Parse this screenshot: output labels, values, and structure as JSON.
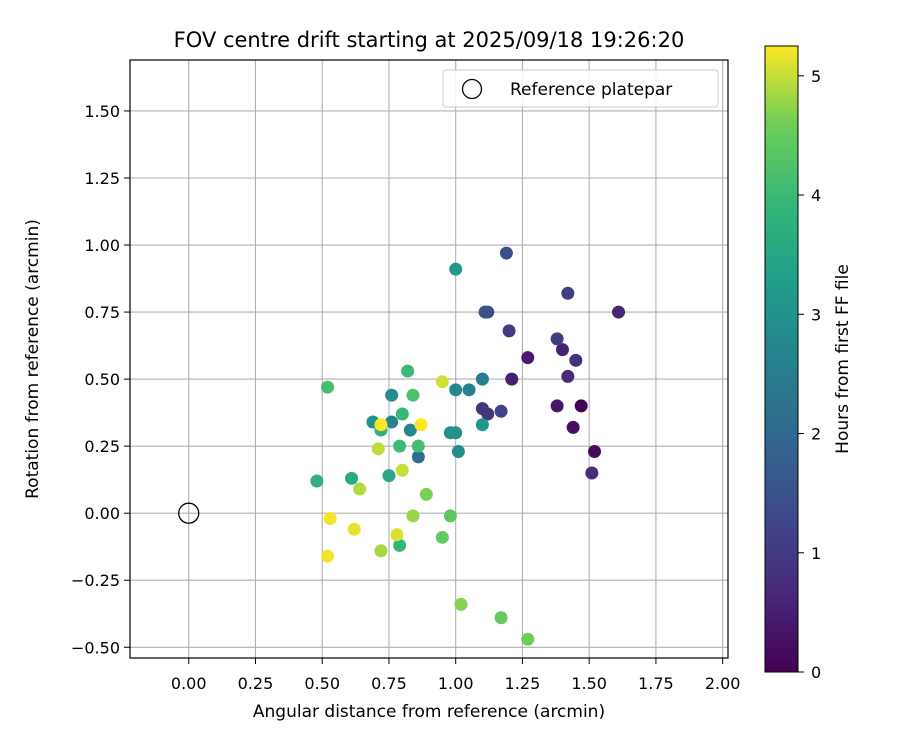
{
  "chart_data": {
    "type": "scatter",
    "title": "FOV centre drift starting at 2025/09/18 19:26:20",
    "xlabel": "Angular distance from reference (arcmin)",
    "ylabel": "Rotation from reference (arcmin)",
    "xlim": [
      -0.22,
      2.02
    ],
    "ylim": [
      -0.54,
      1.69
    ],
    "xticks": [
      0.0,
      0.25,
      0.5,
      0.75,
      1.0,
      1.25,
      1.5,
      1.75,
      2.0
    ],
    "xtick_labels": [
      "0.00",
      "0.25",
      "0.50",
      "0.75",
      "1.00",
      "1.25",
      "1.50",
      "1.75",
      "2.00"
    ],
    "yticks": [
      -0.5,
      -0.25,
      0.0,
      0.25,
      0.5,
      0.75,
      1.0,
      1.25,
      1.5
    ],
    "ytick_labels": [
      "−0.50",
      "−0.25",
      "0.00",
      "0.25",
      "0.50",
      "0.75",
      "1.00",
      "1.25",
      "1.50"
    ],
    "grid": true,
    "legend": {
      "position": "top-right",
      "entries": [
        {
          "label": "Reference platepar",
          "marker": "open-circle"
        }
      ]
    },
    "reference_point": {
      "x": 0.0,
      "y": 0.0,
      "label": "Reference platepar"
    },
    "colorbar": {
      "label": "Hours from first FF file",
      "range": [
        0,
        5.25
      ],
      "ticks": [
        0,
        1,
        2,
        3,
        4,
        5
      ],
      "tick_labels": [
        "0",
        "1",
        "2",
        "3",
        "4",
        "5"
      ],
      "colormap": "viridis"
    },
    "points": [
      {
        "x": 1.47,
        "y": 0.4,
        "c": 0.0
      },
      {
        "x": 1.52,
        "y": 0.23,
        "c": 0.15
      },
      {
        "x": 1.44,
        "y": 0.32,
        "c": 0.25
      },
      {
        "x": 1.38,
        "y": 0.4,
        "c": 0.35
      },
      {
        "x": 1.27,
        "y": 0.58,
        "c": 0.45
      },
      {
        "x": 1.21,
        "y": 0.5,
        "c": 0.5
      },
      {
        "x": 1.4,
        "y": 0.61,
        "c": 0.55
      },
      {
        "x": 1.61,
        "y": 0.75,
        "c": 0.6
      },
      {
        "x": 1.42,
        "y": 0.51,
        "c": 0.7
      },
      {
        "x": 1.51,
        "y": 0.15,
        "c": 0.75
      },
      {
        "x": 1.45,
        "y": 0.57,
        "c": 0.85
      },
      {
        "x": 1.12,
        "y": 0.37,
        "c": 0.9
      },
      {
        "x": 1.1,
        "y": 0.39,
        "c": 0.95
      },
      {
        "x": 1.2,
        "y": 0.68,
        "c": 1.0
      },
      {
        "x": 1.38,
        "y": 0.65,
        "c": 1.05
      },
      {
        "x": 1.42,
        "y": 0.82,
        "c": 1.1
      },
      {
        "x": 1.17,
        "y": 0.38,
        "c": 1.2
      },
      {
        "x": 1.12,
        "y": 0.75,
        "c": 1.3
      },
      {
        "x": 1.19,
        "y": 0.97,
        "c": 1.4
      },
      {
        "x": 1.11,
        "y": 0.75,
        "c": 1.5
      },
      {
        "x": 0.86,
        "y": 0.21,
        "c": 2.1
      },
      {
        "x": 1.1,
        "y": 0.5,
        "c": 2.5
      },
      {
        "x": 1.05,
        "y": 0.46,
        "c": 2.6
      },
      {
        "x": 0.76,
        "y": 0.34,
        "c": 2.7
      },
      {
        "x": 1.0,
        "y": 0.46,
        "c": 2.75
      },
      {
        "x": 0.83,
        "y": 0.31,
        "c": 2.8
      },
      {
        "x": 0.76,
        "y": 0.44,
        "c": 2.85
      },
      {
        "x": 1.01,
        "y": 0.23,
        "c": 2.9
      },
      {
        "x": 0.98,
        "y": 0.3,
        "c": 2.95
      },
      {
        "x": 1.0,
        "y": 0.3,
        "c": 3.0
      },
      {
        "x": 0.69,
        "y": 0.34,
        "c": 3.05
      },
      {
        "x": 1.1,
        "y": 0.33,
        "c": 3.1
      },
      {
        "x": 1.0,
        "y": 0.91,
        "c": 3.15
      },
      {
        "x": 0.75,
        "y": 0.14,
        "c": 3.55
      },
      {
        "x": 0.61,
        "y": 0.13,
        "c": 3.6
      },
      {
        "x": 0.48,
        "y": 0.12,
        "c": 3.75
      },
      {
        "x": 0.72,
        "y": 0.31,
        "c": 3.8
      },
      {
        "x": 0.79,
        "y": -0.12,
        "c": 3.9
      },
      {
        "x": 0.8,
        "y": 0.37,
        "c": 3.95
      },
      {
        "x": 0.82,
        "y": 0.53,
        "c": 4.0
      },
      {
        "x": 0.79,
        "y": 0.25,
        "c": 4.05
      },
      {
        "x": 0.86,
        "y": 0.25,
        "c": 4.1
      },
      {
        "x": 0.52,
        "y": 0.47,
        "c": 4.15
      },
      {
        "x": 0.84,
        "y": 0.44,
        "c": 4.2
      },
      {
        "x": 0.98,
        "y": -0.01,
        "c": 4.4
      },
      {
        "x": 0.95,
        "y": -0.09,
        "c": 4.45
      },
      {
        "x": 1.17,
        "y": -0.39,
        "c": 4.5
      },
      {
        "x": 1.27,
        "y": -0.47,
        "c": 4.6
      },
      {
        "x": 0.89,
        "y": 0.07,
        "c": 4.65
      },
      {
        "x": 1.02,
        "y": -0.34,
        "c": 4.7
      },
      {
        "x": 0.84,
        "y": -0.01,
        "c": 4.8
      },
      {
        "x": 0.72,
        "y": -0.14,
        "c": 4.85
      },
      {
        "x": 0.64,
        "y": 0.09,
        "c": 4.9
      },
      {
        "x": 0.71,
        "y": 0.24,
        "c": 4.95
      },
      {
        "x": 0.8,
        "y": 0.16,
        "c": 5.0
      },
      {
        "x": 0.95,
        "y": 0.49,
        "c": 5.05
      },
      {
        "x": 0.78,
        "y": -0.08,
        "c": 5.1
      },
      {
        "x": 0.62,
        "y": -0.06,
        "c": 5.15
      },
      {
        "x": 0.53,
        "y": -0.02,
        "c": 5.2
      },
      {
        "x": 0.52,
        "y": -0.16,
        "c": 5.2
      },
      {
        "x": 0.87,
        "y": 0.33,
        "c": 5.25
      },
      {
        "x": 0.72,
        "y": 0.33,
        "c": 5.25
      }
    ]
  }
}
